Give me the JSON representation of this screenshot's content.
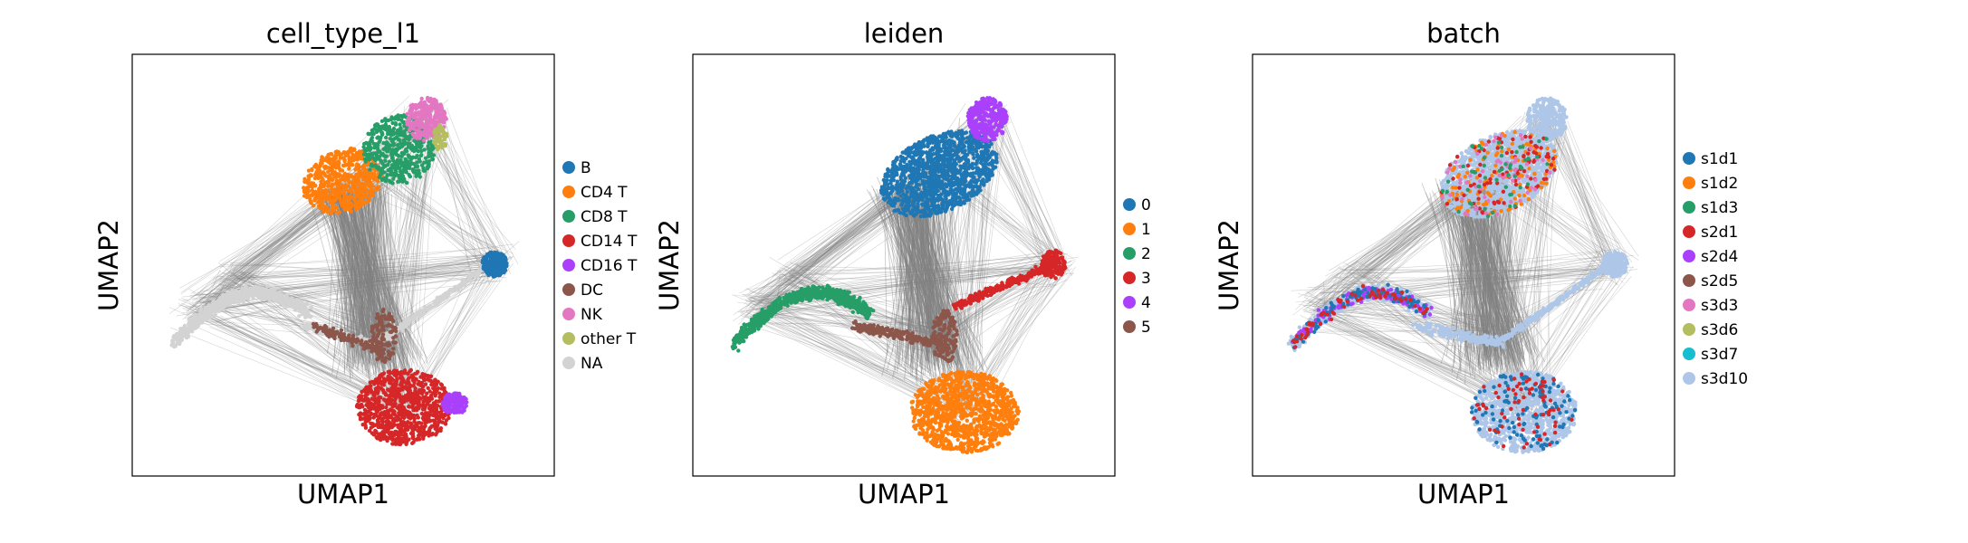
{
  "chart_data": [
    {
      "type": "scatter",
      "title": "cell_type_l1",
      "xlabel": "UMAP1",
      "ylabel": "UMAP2",
      "grid": false,
      "legend": "right",
      "series": [
        {
          "name": "B",
          "color": "#1f77b4"
        },
        {
          "name": "CD4 T",
          "color": "#ff7f0e"
        },
        {
          "name": "CD8 T",
          "color": "#279e68"
        },
        {
          "name": "CD14 T",
          "color": "#d62728"
        },
        {
          "name": "CD16 T",
          "color": "#aa40fc"
        },
        {
          "name": "DC",
          "color": "#8c564b"
        },
        {
          "name": "NK",
          "color": "#e377c2"
        },
        {
          "name": "other T",
          "color": "#b5bd61"
        },
        {
          "name": "NA",
          "color": "#d3d3d3"
        }
      ]
    },
    {
      "type": "scatter",
      "title": "leiden",
      "xlabel": "UMAP1",
      "ylabel": "UMAP2",
      "grid": false,
      "legend": "right",
      "series": [
        {
          "name": "0",
          "color": "#1f77b4"
        },
        {
          "name": "1",
          "color": "#ff7f0e"
        },
        {
          "name": "2",
          "color": "#279e68"
        },
        {
          "name": "3",
          "color": "#d62728"
        },
        {
          "name": "4",
          "color": "#aa40fc"
        },
        {
          "name": "5",
          "color": "#8c564b"
        }
      ]
    },
    {
      "type": "scatter",
      "title": "batch",
      "xlabel": "UMAP1",
      "ylabel": "UMAP2",
      "grid": false,
      "legend": "right",
      "series": [
        {
          "name": "s1d1",
          "color": "#1f77b4"
        },
        {
          "name": "s1d2",
          "color": "#ff7f0e"
        },
        {
          "name": "s1d3",
          "color": "#279e68"
        },
        {
          "name": "s2d1",
          "color": "#d62728"
        },
        {
          "name": "s2d4",
          "color": "#aa40fc"
        },
        {
          "name": "s2d5",
          "color": "#8c564b"
        },
        {
          "name": "s3d3",
          "color": "#e377c2"
        },
        {
          "name": "s3d6",
          "color": "#b5bd61"
        },
        {
          "name": "s3d7",
          "color": "#17becf"
        },
        {
          "name": "s3d10",
          "color": "#aec7e8"
        }
      ]
    }
  ]
}
